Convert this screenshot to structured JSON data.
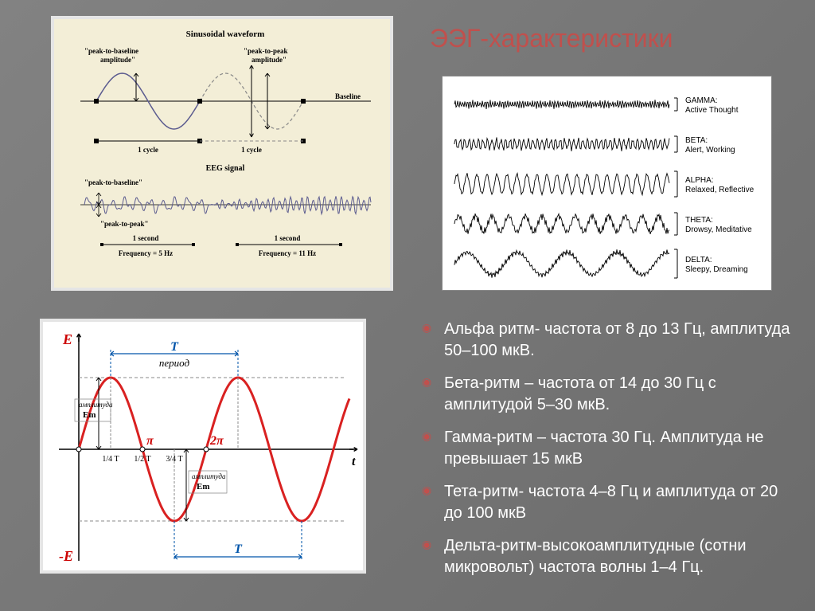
{
  "title": "ЭЭГ-характеристики",
  "bullets": [
    "Альфа ритм- частота от 8 до 13 Гц, амплитуда 50–100 мкВ.",
    "Бета-ритм – частота от 14 до 30 Гц с амплитудой 5–30 мкВ.",
    "Гамма-ритм – частота  30 Гц. Амплитуда не превышает 15 мкВ",
    "Тета-ритм- частота 4–8 Гц и амплитуда от 20 до 100 мкВ",
    "Дельта-ритм-высокоамплитудные (сотни микровольт) частота волны 1–4 Гц."
  ],
  "sinus_panel": {
    "title": "Sinusoidal waveform",
    "label_ptb": "\"peak-to-baseline amplitude\"",
    "label_ptp": "\"peak-to-peak amplitude\"",
    "label_baseline": "Baseline",
    "label_cycle": "1 cycle",
    "label_eeg": "EEG signal",
    "label_ptb2": "\"peak-to-baseline\"",
    "label_ptp2": "\"peak-to-peak\"",
    "label_1sec": "1 second",
    "label_f5": "Frequency = 5 Hz",
    "label_f11": "Frequency = 11 Hz",
    "wave_color": "#5b5b8f",
    "dash_color": "#888888",
    "bg": "#f3eed7"
  },
  "eeg_types": {
    "rows": [
      {
        "name": "GAMMA:",
        "desc": "Active Thought",
        "freq": 40,
        "amp": 4,
        "noise": 2
      },
      {
        "name": "BETA:",
        "desc": "Alert, Working",
        "freq": 22,
        "amp": 6,
        "noise": 3
      },
      {
        "name": "ALPHA:",
        "desc": "Relaxed, Reflective",
        "freq": 10,
        "amp": 12,
        "noise": 2
      },
      {
        "name": "THETA:",
        "desc": "Drowsy, Meditative",
        "freq": 6,
        "amp": 10,
        "noise": 5
      },
      {
        "name": "DELTA:",
        "desc": "Sleepy, Dreaming",
        "freq": 2,
        "amp": 14,
        "noise": 4
      }
    ],
    "wave_color": "#000000",
    "label_color": "#000000",
    "label_fontsize": 10
  },
  "period_panel": {
    "axis_color": "#000000",
    "wave_color": "#d92121",
    "arrow_color": "#0055aa",
    "text_color": "#000000",
    "label_E": "E",
    "label_negE": "-E",
    "label_t": "t",
    "label_T": "T",
    "label_period": "период",
    "label_pi": "π",
    "label_2pi": "2π",
    "label_q14": "1/4 T",
    "label_q12": "1/2 T",
    "label_q34": "3/4 T",
    "label_amp": "Em",
    "label_amp_word": "амплитуда",
    "wave_amplitude": 90,
    "wave_wavelength": 160,
    "linewidth": 3
  }
}
